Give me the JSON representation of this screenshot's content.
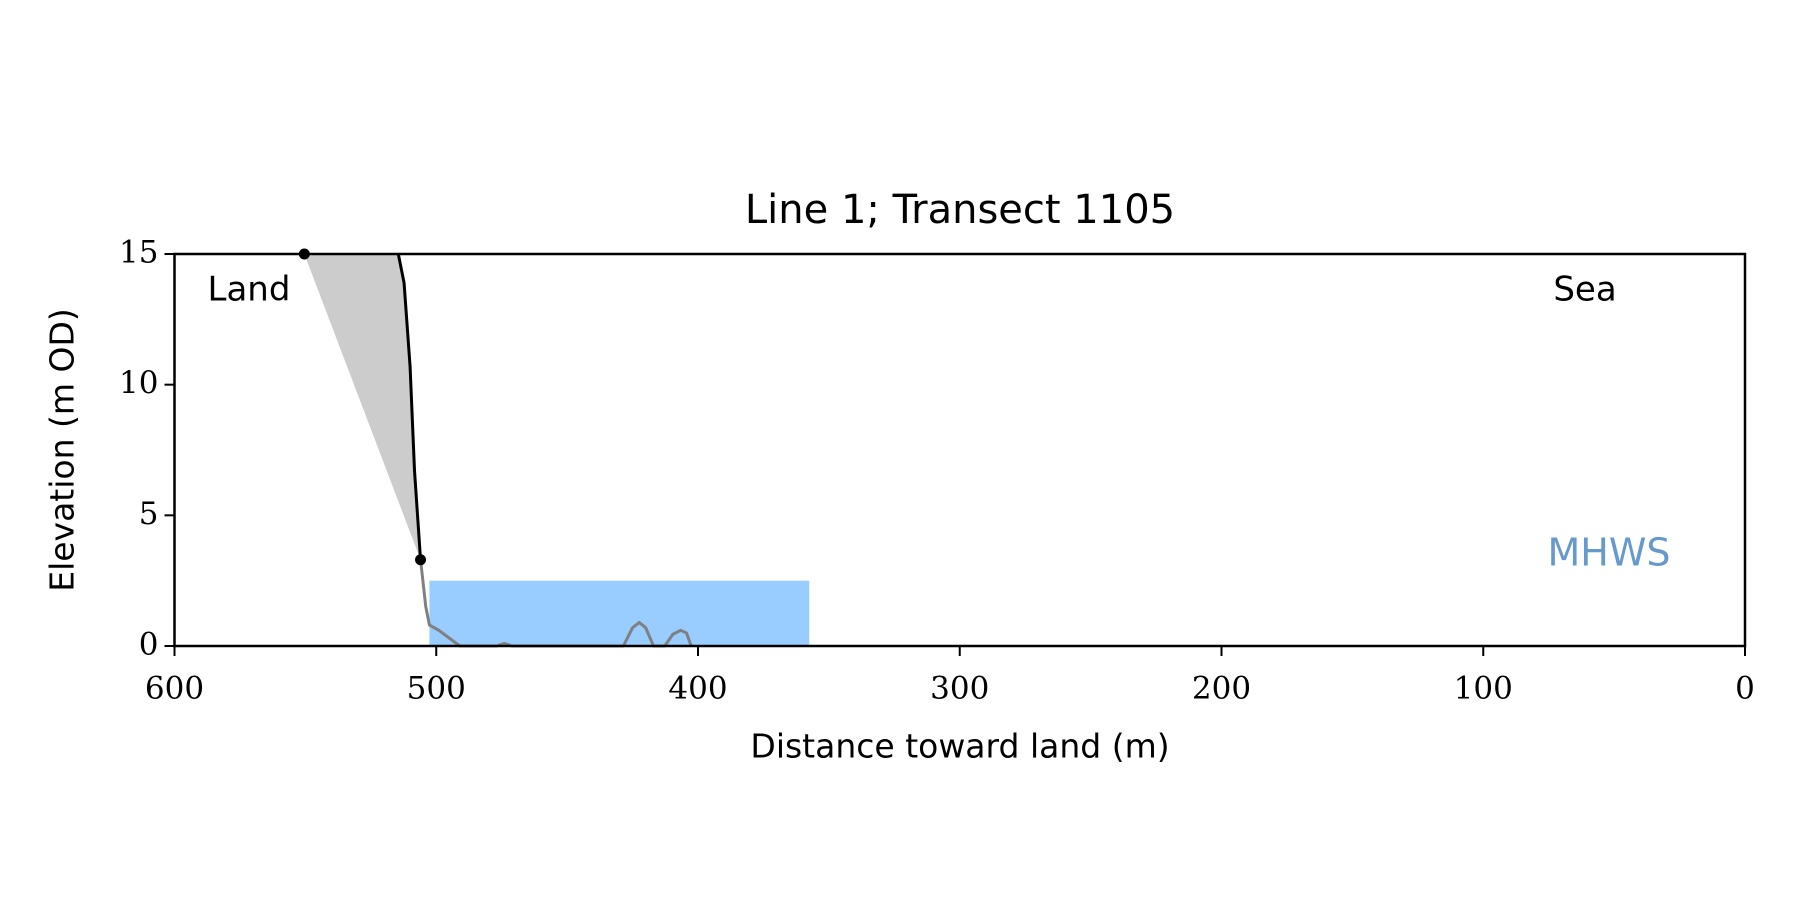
{
  "chart_data": {
    "type": "line",
    "title": "Line 1; Transect 1105",
    "xlabel": "Distance toward land (m)",
    "ylabel": "Elevation (m OD)",
    "xlim": [
      600,
      0
    ],
    "ylim": [
      0,
      15
    ],
    "xticks": [
      600,
      500,
      400,
      300,
      200,
      100,
      0
    ],
    "yticks": [
      0,
      5,
      10,
      15
    ],
    "series": [
      {
        "color": "#000000",
        "x": [
          514.5,
          512.3,
          510,
          508.3,
          506
        ],
        "values": [
          15,
          13.9,
          10.7,
          6.7,
          3.3
        ]
      },
      {
        "color": "#808080",
        "x": [
          506,
          504,
          502.6,
          499,
          491,
          477,
          474,
          471,
          428.5,
          425,
          422.4,
          420,
          417,
          412.7,
          409.6,
          406.6,
          404.4,
          402.6
        ],
        "values": [
          3.3,
          1.5,
          0.8,
          0.6,
          0,
          0,
          0.1,
          0,
          0,
          0.7,
          0.9,
          0.7,
          0,
          0,
          0.45,
          0.6,
          0.5,
          0
        ]
      }
    ],
    "points": {
      "color": "#000000",
      "x": [
        550.4,
        506
      ],
      "values": [
        15,
        3.3
      ]
    },
    "fill_color": "#cccccc",
    "band": {
      "x": [
        502.6,
        357.5
      ],
      "values": [
        0,
        2.5
      ],
      "color": "#99ccff"
    },
    "annotations": [
      {
        "text": "Land",
        "color": "#000000"
      },
      {
        "text": "Sea",
        "color": "#000000"
      },
      {
        "text": "MHWS",
        "color": "#6699cc"
      }
    ]
  }
}
